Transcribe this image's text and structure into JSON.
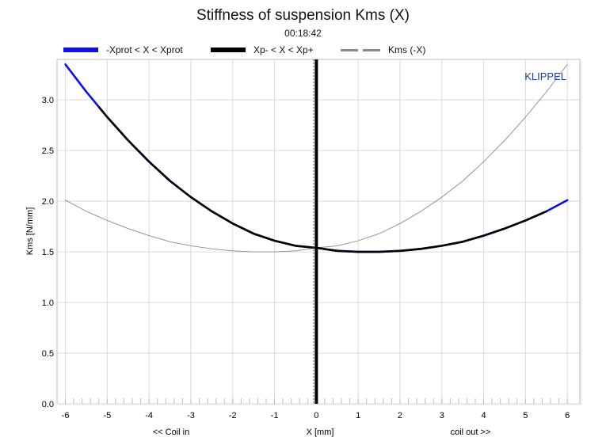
{
  "chart_data": {
    "type": "line",
    "title": "Stiffness of suspension Kms (X)",
    "subtitle": "00:18:42",
    "xlabel": "X [mm]",
    "ylabel": "Kms [N/mm]",
    "xlabel_left": "<< Coil in",
    "xlabel_right": "coil out >>",
    "watermark": "KLIPPEL",
    "xlim": [
      -6.2,
      6.3
    ],
    "ylim": [
      0.0,
      3.4
    ],
    "x_ticks": [
      -6,
      -5,
      -4,
      -3,
      -2,
      -1,
      0,
      1,
      2,
      3,
      4,
      5,
      6
    ],
    "y_ticks": [
      "0.0",
      "0.5",
      "1.0",
      "1.5",
      "2.0",
      "2.5",
      "3.0"
    ],
    "grid": true,
    "legend_position": "top",
    "series": [
      {
        "name": "-Xprot < X < Xprot",
        "color": "#1010e0",
        "style": "thick",
        "x": [
          -6.0,
          -5.5,
          -5.0,
          -4.5,
          -4.0,
          -3.5,
          -3.0,
          -2.5,
          -2.0,
          -1.5,
          -1.0,
          -0.5,
          0.0,
          0.5,
          1.0,
          1.5,
          2.0,
          2.5,
          3.0,
          3.5,
          4.0,
          4.5,
          5.0,
          5.5,
          6.0
        ],
        "y": [
          3.35,
          3.08,
          2.83,
          2.6,
          2.39,
          2.2,
          2.04,
          1.9,
          1.78,
          1.68,
          1.61,
          1.56,
          1.54,
          1.51,
          1.5,
          1.5,
          1.51,
          1.53,
          1.56,
          1.6,
          1.66,
          1.73,
          1.81,
          1.9,
          2.01
        ]
      },
      {
        "name": "Xp- < X < Xp+",
        "color": "#000000",
        "style": "thick",
        "x": [
          -5.2,
          -5.0,
          -4.5,
          -4.0,
          -3.5,
          -3.0,
          -2.5,
          -2.0,
          -1.5,
          -1.0,
          -0.5,
          0.0,
          0.5,
          1.0,
          1.5,
          2.0,
          2.5,
          3.0,
          3.5,
          4.0,
          4.5,
          5.0,
          5.5
        ],
        "y": [
          2.93,
          2.83,
          2.6,
          2.39,
          2.2,
          2.04,
          1.9,
          1.78,
          1.68,
          1.61,
          1.56,
          1.54,
          1.51,
          1.5,
          1.5,
          1.51,
          1.53,
          1.56,
          1.6,
          1.66,
          1.73,
          1.81,
          1.9
        ]
      },
      {
        "name": "Kms (-X)",
        "color": "#8a8a8a",
        "style": "thin",
        "x": [
          -6.0,
          -5.5,
          -5.0,
          -4.5,
          -4.0,
          -3.5,
          -3.0,
          -2.5,
          -2.0,
          -1.5,
          -1.0,
          -0.5,
          0.0,
          0.5,
          1.0,
          1.5,
          2.0,
          2.5,
          3.0,
          3.5,
          4.0,
          4.5,
          5.0,
          5.5,
          6.0
        ],
        "y": [
          2.01,
          1.9,
          1.81,
          1.73,
          1.66,
          1.6,
          1.56,
          1.53,
          1.51,
          1.5,
          1.5,
          1.51,
          1.54,
          1.56,
          1.61,
          1.68,
          1.78,
          1.9,
          2.04,
          2.2,
          2.39,
          2.6,
          2.83,
          3.08,
          3.35
        ]
      }
    ],
    "marker_line": {
      "x": 0.0,
      "color": "#000000"
    }
  }
}
